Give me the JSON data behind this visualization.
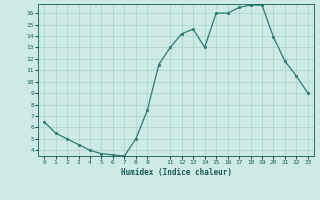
{
  "x": [
    0,
    1,
    2,
    3,
    4,
    5,
    6,
    7,
    8,
    9,
    10,
    11,
    12,
    13,
    14,
    15,
    16,
    17,
    18,
    19,
    20,
    21,
    22,
    23
  ],
  "y": [
    6.5,
    5.5,
    5.0,
    4.5,
    4.0,
    3.7,
    3.6,
    3.5,
    5.0,
    7.5,
    11.5,
    13.0,
    14.2,
    14.6,
    13.0,
    16.0,
    16.0,
    16.5,
    16.7,
    16.7,
    13.9,
    11.8,
    10.5,
    9.0
  ],
  "xlabel": "Humidex (Indice chaleur)",
  "ylim": [
    3.5,
    16.8
  ],
  "xlim": [
    -0.5,
    23.5
  ],
  "yticks": [
    4,
    5,
    6,
    7,
    8,
    9,
    10,
    11,
    12,
    13,
    14,
    15,
    16
  ],
  "xticks": [
    0,
    1,
    2,
    3,
    4,
    5,
    6,
    7,
    8,
    9,
    11,
    12,
    13,
    14,
    15,
    16,
    17,
    18,
    19,
    20,
    21,
    22,
    23
  ],
  "xtick_labels": [
    "0",
    "1",
    "2",
    "3",
    "4",
    "5",
    "6",
    "7",
    "8",
    "9",
    "11",
    "12",
    "13",
    "14",
    "15",
    "16",
    "17",
    "18",
    "19",
    "20",
    "21",
    "22",
    "23"
  ],
  "line_color": "#2d7b70",
  "bg_color": "#cdeae7",
  "grid_color": "#aacfcc",
  "text_color": "#1a5c55"
}
